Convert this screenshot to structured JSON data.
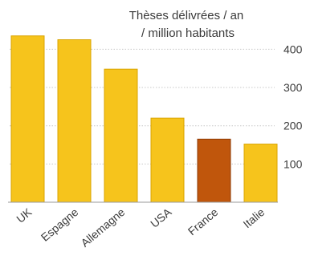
{
  "chart_data": {
    "type": "bar",
    "title_lines": [
      "Thèses délivrées / an",
      "/ million habitants"
    ],
    "categories": [
      "UK",
      "Espagne",
      "Allemagne",
      "USA",
      "France",
      "Italie"
    ],
    "values": [
      435,
      425,
      348,
      220,
      165,
      152
    ],
    "highlight_category": "France",
    "colors": {
      "bar": "#F6C41C",
      "bar_edge": "#D9A400",
      "highlight": "#C0560C",
      "highlight_edge": "#8E3A05",
      "grid": "#C8C8C8",
      "axis": "#999999"
    },
    "ylim": [
      0,
      450
    ],
    "yticks": [
      {
        "value": 400,
        "label": "400"
      },
      {
        "value": 300,
        "label": "300"
      },
      {
        "value": 200,
        "label": "200"
      },
      {
        "value": 100,
        "label": "100"
      }
    ],
    "grid": true,
    "xlabel": "",
    "ylabel": ""
  }
}
